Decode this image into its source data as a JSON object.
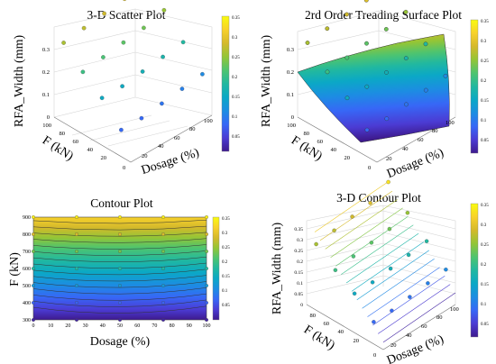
{
  "colors": {
    "colormap": [
      "#3e1a8e",
      "#4b3bd3",
      "#3767f6",
      "#1c8de2",
      "#0ba8c6",
      "#21b8a0",
      "#4ec46f",
      "#93c536",
      "#d4b92b",
      "#f8d12b",
      "#f9fb0e"
    ]
  },
  "chart_data": [
    {
      "type": "scatter",
      "panel_title": "3-D Scatter Plot",
      "xlabel": "Dosage (%)",
      "ylabel": "F (kN)",
      "zlabel": "RFA_Width (mm)",
      "x_ticks": [
        "0",
        "20",
        "40",
        "60",
        "80",
        "100"
      ],
      "y_ticks": [
        "20",
        "40",
        "60",
        "80",
        "100"
      ],
      "z_ticks": [
        "0",
        "0.1",
        "0.2",
        "0.3"
      ],
      "colorbar_ticks": [
        "0.35",
        "0.3",
        "0.25",
        "0.2",
        "0.15",
        "0.1",
        "0.05"
      ],
      "xlim": [
        0,
        100
      ],
      "ylim": [
        20,
        100
      ],
      "zlim": [
        0,
        0.35
      ],
      "points": [
        {
          "x": 0,
          "y": 90,
          "z": 0.27
        },
        {
          "x": 25,
          "y": 90,
          "z": 0.28
        },
        {
          "x": 50,
          "y": 90,
          "z": 0.29
        },
        {
          "x": 75,
          "y": 90,
          "z": 0.3
        },
        {
          "x": 100,
          "y": 90,
          "z": 0.34
        },
        {
          "x": 0,
          "y": 70,
          "z": 0.21
        },
        {
          "x": 25,
          "y": 70,
          "z": 0.22
        },
        {
          "x": 50,
          "y": 70,
          "z": 0.23
        },
        {
          "x": 75,
          "y": 70,
          "z": 0.24
        },
        {
          "x": 100,
          "y": 70,
          "z": 0.26
        },
        {
          "x": 0,
          "y": 50,
          "z": 0.16
        },
        {
          "x": 25,
          "y": 50,
          "z": 0.16
        },
        {
          "x": 50,
          "y": 50,
          "z": 0.17
        },
        {
          "x": 75,
          "y": 50,
          "z": 0.18
        },
        {
          "x": 100,
          "y": 50,
          "z": 0.19
        },
        {
          "x": 0,
          "y": 30,
          "z": 0.09
        },
        {
          "x": 25,
          "y": 30,
          "z": 0.09
        },
        {
          "x": 50,
          "y": 30,
          "z": 0.1
        },
        {
          "x": 75,
          "y": 30,
          "z": 0.11
        },
        {
          "x": 100,
          "y": 30,
          "z": 0.12
        }
      ]
    },
    {
      "type": "surface",
      "panel_title": "2rd Order Treading Surface Plot",
      "xlabel": "Dosage (%)",
      "ylabel": "F (kN)",
      "zlabel": "RFA_Width (mm)",
      "x_ticks": [
        "0",
        "20",
        "40",
        "60",
        "80",
        "100"
      ],
      "y_ticks": [
        "20",
        "40",
        "60",
        "80",
        "100"
      ],
      "z_ticks": [
        "0",
        "0.1",
        "0.2",
        "0.3"
      ],
      "colorbar_ticks": [
        "0.35",
        "0.3",
        "0.25",
        "0.2",
        "0.15",
        "0.1",
        "0.05"
      ],
      "xlim": [
        0,
        100
      ],
      "ylim": [
        20,
        100
      ],
      "zlim": [
        0,
        0.35
      ]
    },
    {
      "type": "contour",
      "panel_title": "Contour Plot",
      "xlabel": "Dosage (%)",
      "ylabel": "F (kN)",
      "x_ticks": [
        "0",
        "10",
        "20",
        "30",
        "40",
        "50",
        "60",
        "70",
        "80",
        "90",
        "100"
      ],
      "y_ticks": [
        "300",
        "400",
        "500",
        "600",
        "700",
        "800",
        "900"
      ],
      "colorbar_ticks": [
        "0.35",
        "0.3",
        "0.25",
        "0.2",
        "0.15",
        "0.1",
        "0.05"
      ],
      "xlim": [
        0,
        100
      ],
      "ylim": [
        300,
        900
      ]
    },
    {
      "type": "contour3d",
      "panel_title": "3-D Contour Plot",
      "xlabel": "Dosage (%)",
      "ylabel": "F (kN)",
      "zlabel": "RFA_Width (mm)",
      "x_ticks": [
        "0",
        "20",
        "40",
        "60",
        "80",
        "100"
      ],
      "y_ticks": [
        "20",
        "40",
        "60",
        "80"
      ],
      "z_ticks": [
        "0",
        "0.05",
        "0.1",
        "0.15",
        "0.2",
        "0.25",
        "0.3",
        "0.35"
      ],
      "colorbar_ticks": [
        "0.35",
        "0.3",
        "0.25",
        "0.2",
        "0.15",
        "0.1",
        "0.05"
      ],
      "xlim": [
        0,
        100
      ],
      "ylim": [
        20,
        100
      ],
      "zlim": [
        0,
        0.35
      ]
    }
  ]
}
